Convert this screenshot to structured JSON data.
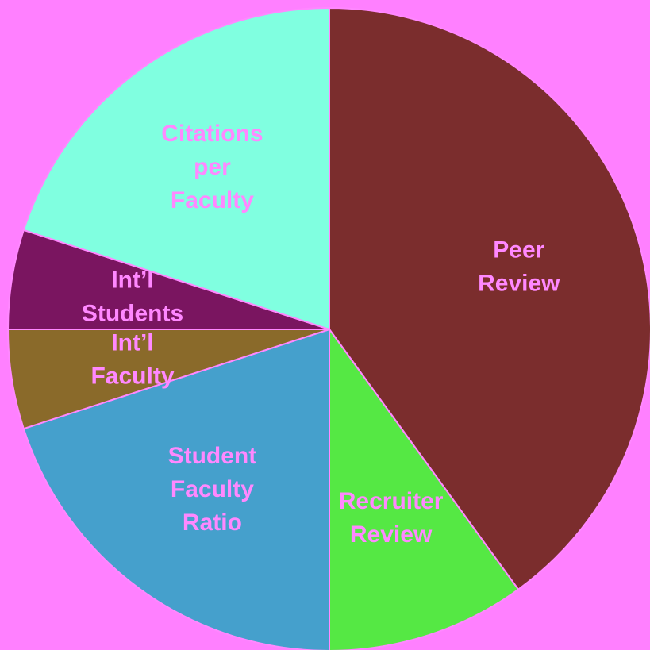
{
  "chart_data": {
    "type": "pie",
    "categories": [
      "Peer Review",
      "Recruiter Review",
      "Student Faculty Ratio",
      "Int’l Faculty",
      "Int’l Students",
      "Citations per Faculty"
    ],
    "values": [
      40,
      10,
      20,
      5,
      5,
      20
    ],
    "colors": [
      "#7b2d2d",
      "#55e844",
      "#45a0cc",
      "#8a6a2a",
      "#7a1560",
      "#80ffe0"
    ]
  }
}
